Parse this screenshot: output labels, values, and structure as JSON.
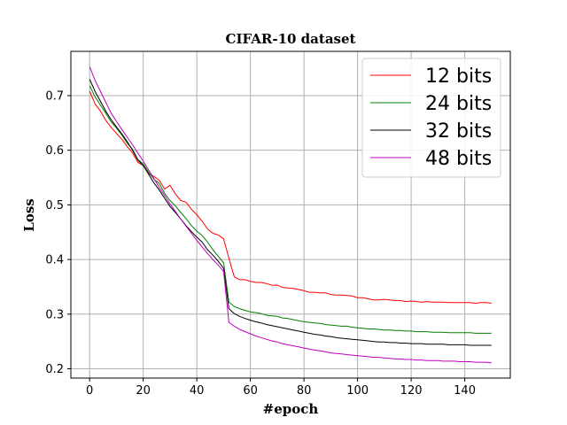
{
  "chart_data": {
    "type": "line",
    "title": "CIFAR-10 dataset",
    "xlabel": "#epoch",
    "ylabel": "Loss",
    "xlim": [
      -7,
      157
    ],
    "ylim": [
      0.183,
      0.781
    ],
    "xticks": [
      0,
      20,
      40,
      60,
      80,
      100,
      120,
      140
    ],
    "yticks": [
      0.2,
      0.3,
      0.4,
      0.5,
      0.6,
      0.7
    ],
    "grid": true,
    "legend_position": "top-right",
    "x": [
      0,
      2,
      4,
      6,
      8,
      10,
      12,
      14,
      16,
      18,
      20,
      22,
      24,
      26,
      28,
      30,
      32,
      34,
      36,
      38,
      40,
      42,
      44,
      46,
      48,
      50,
      52,
      54,
      56,
      58,
      60,
      62,
      64,
      66,
      68,
      70,
      72,
      74,
      76,
      78,
      80,
      82,
      84,
      86,
      88,
      90,
      92,
      94,
      96,
      98,
      100,
      102,
      104,
      106,
      108,
      110,
      112,
      114,
      116,
      118,
      120,
      122,
      124,
      126,
      128,
      130,
      132,
      134,
      136,
      138,
      140,
      142,
      144,
      146,
      148,
      150
    ],
    "series": [
      {
        "name": "12 bits",
        "color": "#ff0000",
        "values": [
          0.708,
          0.685,
          0.672,
          0.655,
          0.642,
          0.631,
          0.62,
          0.607,
          0.595,
          0.578,
          0.572,
          0.557,
          0.552,
          0.545,
          0.529,
          0.536,
          0.52,
          0.508,
          0.505,
          0.492,
          0.482,
          0.47,
          0.456,
          0.448,
          0.445,
          0.438,
          0.402,
          0.368,
          0.363,
          0.363,
          0.36,
          0.358,
          0.358,
          0.356,
          0.353,
          0.353,
          0.349,
          0.348,
          0.347,
          0.345,
          0.343,
          0.34,
          0.34,
          0.339,
          0.339,
          0.336,
          0.335,
          0.335,
          0.334,
          0.333,
          0.33,
          0.33,
          0.328,
          0.326,
          0.326,
          0.327,
          0.326,
          0.325,
          0.325,
          0.323,
          0.324,
          0.323,
          0.322,
          0.323,
          0.322,
          0.322,
          0.322,
          0.321,
          0.321,
          0.321,
          0.321,
          0.321,
          0.32,
          0.321,
          0.321,
          0.32
        ]
      },
      {
        "name": "24 bits",
        "color": "#008000",
        "values": [
          0.718,
          0.698,
          0.683,
          0.668,
          0.652,
          0.641,
          0.628,
          0.613,
          0.602,
          0.583,
          0.575,
          0.56,
          0.547,
          0.539,
          0.521,
          0.508,
          0.498,
          0.486,
          0.475,
          0.462,
          0.452,
          0.444,
          0.432,
          0.418,
          0.406,
          0.394,
          0.322,
          0.314,
          0.31,
          0.307,
          0.304,
          0.303,
          0.301,
          0.298,
          0.297,
          0.296,
          0.293,
          0.292,
          0.29,
          0.288,
          0.286,
          0.285,
          0.284,
          0.283,
          0.281,
          0.28,
          0.279,
          0.278,
          0.278,
          0.276,
          0.275,
          0.274,
          0.273,
          0.273,
          0.272,
          0.271,
          0.271,
          0.27,
          0.27,
          0.269,
          0.269,
          0.268,
          0.268,
          0.268,
          0.267,
          0.267,
          0.267,
          0.266,
          0.266,
          0.266,
          0.266,
          0.266,
          0.265,
          0.265,
          0.265,
          0.265
        ]
      },
      {
        "name": "32 bits",
        "color": "#000000",
        "values": [
          0.73,
          0.708,
          0.69,
          0.672,
          0.656,
          0.643,
          0.63,
          0.616,
          0.6,
          0.582,
          0.572,
          0.556,
          0.54,
          0.527,
          0.512,
          0.497,
          0.486,
          0.474,
          0.462,
          0.451,
          0.441,
          0.432,
          0.418,
          0.408,
          0.397,
          0.384,
          0.31,
          0.301,
          0.296,
          0.292,
          0.289,
          0.286,
          0.284,
          0.281,
          0.279,
          0.277,
          0.275,
          0.273,
          0.271,
          0.269,
          0.267,
          0.265,
          0.263,
          0.262,
          0.26,
          0.259,
          0.257,
          0.256,
          0.255,
          0.254,
          0.253,
          0.252,
          0.251,
          0.25,
          0.249,
          0.249,
          0.248,
          0.248,
          0.247,
          0.247,
          0.246,
          0.246,
          0.246,
          0.245,
          0.245,
          0.245,
          0.245,
          0.244,
          0.244,
          0.244,
          0.244,
          0.243,
          0.243,
          0.243,
          0.243,
          0.243
        ]
      },
      {
        "name": "48 bits",
        "color": "#bf00bf",
        "values": [
          0.753,
          0.728,
          0.708,
          0.688,
          0.668,
          0.653,
          0.638,
          0.624,
          0.61,
          0.595,
          0.58,
          0.564,
          0.548,
          0.532,
          0.517,
          0.502,
          0.488,
          0.474,
          0.461,
          0.448,
          0.435,
          0.423,
          0.411,
          0.4,
          0.39,
          0.378,
          0.285,
          0.278,
          0.272,
          0.268,
          0.264,
          0.26,
          0.257,
          0.254,
          0.251,
          0.249,
          0.246,
          0.244,
          0.242,
          0.24,
          0.238,
          0.236,
          0.234,
          0.233,
          0.231,
          0.229,
          0.228,
          0.227,
          0.226,
          0.225,
          0.224,
          0.223,
          0.222,
          0.221,
          0.221,
          0.22,
          0.219,
          0.218,
          0.218,
          0.217,
          0.217,
          0.216,
          0.216,
          0.215,
          0.215,
          0.215,
          0.214,
          0.214,
          0.214,
          0.213,
          0.213,
          0.213,
          0.212,
          0.212,
          0.212,
          0.211
        ]
      }
    ]
  }
}
